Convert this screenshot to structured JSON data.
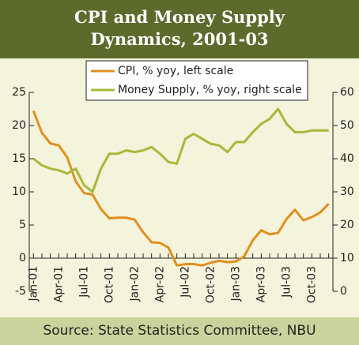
{
  "chart_data": {
    "type": "line",
    "title": "CPI and Money Supply Dynamics, 2001-03",
    "source": "Source: State Statistics Committee, NBU",
    "categories": [
      "Jan-01",
      null,
      null,
      "Apr-01",
      null,
      null,
      "Jul-01",
      null,
      null,
      "Oct-01",
      null,
      null,
      "Jan-02",
      null,
      null,
      "Apr-02",
      null,
      null,
      "Jul-02",
      null,
      null,
      "Oct-02",
      null,
      null,
      "Jan-03",
      null,
      null,
      "Apr-03",
      null,
      null,
      "Jul-03",
      null,
      null,
      "Oct-03",
      null,
      null
    ],
    "series": [
      {
        "name": "CPI, % yoy, left scale",
        "color": "#e0901e",
        "values": [
          22.2,
          18.9,
          17.3,
          17.0,
          15.2,
          11.6,
          9.8,
          9.6,
          7.4,
          6.0,
          6.1,
          6.1,
          5.8,
          3.9,
          2.4,
          2.3,
          1.6,
          -1.1,
          -0.9,
          -0.9,
          -1.1,
          -0.7,
          -0.4,
          -0.6,
          -0.5,
          0.3,
          2.7,
          4.2,
          3.6,
          3.8,
          5.9,
          7.3,
          5.7,
          6.2,
          6.9,
          8.2
        ]
      },
      {
        "name": "Money Supply, % yoy, right scale",
        "color": "#a8b83a",
        "axis": "y2",
        "values": [
          40.0,
          38.0,
          37.0,
          36.5,
          35.5,
          37.0,
          32.0,
          30.0,
          37.0,
          41.5,
          41.5,
          42.5,
          42.0,
          42.5,
          43.5,
          41.5,
          39.0,
          38.5,
          46.0,
          47.5,
          46.0,
          44.5,
          44.0,
          42.0,
          45.0,
          45.0,
          48.0,
          50.5,
          52.0,
          55.0,
          50.5,
          48.0,
          48.0,
          48.5,
          48.5,
          48.5
        ]
      }
    ],
    "ylim": [
      -5,
      25
    ],
    "yticks": [
      -5,
      0,
      5,
      10,
      15,
      20,
      25
    ],
    "y2lim": [
      0,
      60
    ],
    "y2ticks": [
      0,
      10,
      20,
      30,
      40,
      50,
      60
    ],
    "legend": "upper center",
    "grid": false
  }
}
